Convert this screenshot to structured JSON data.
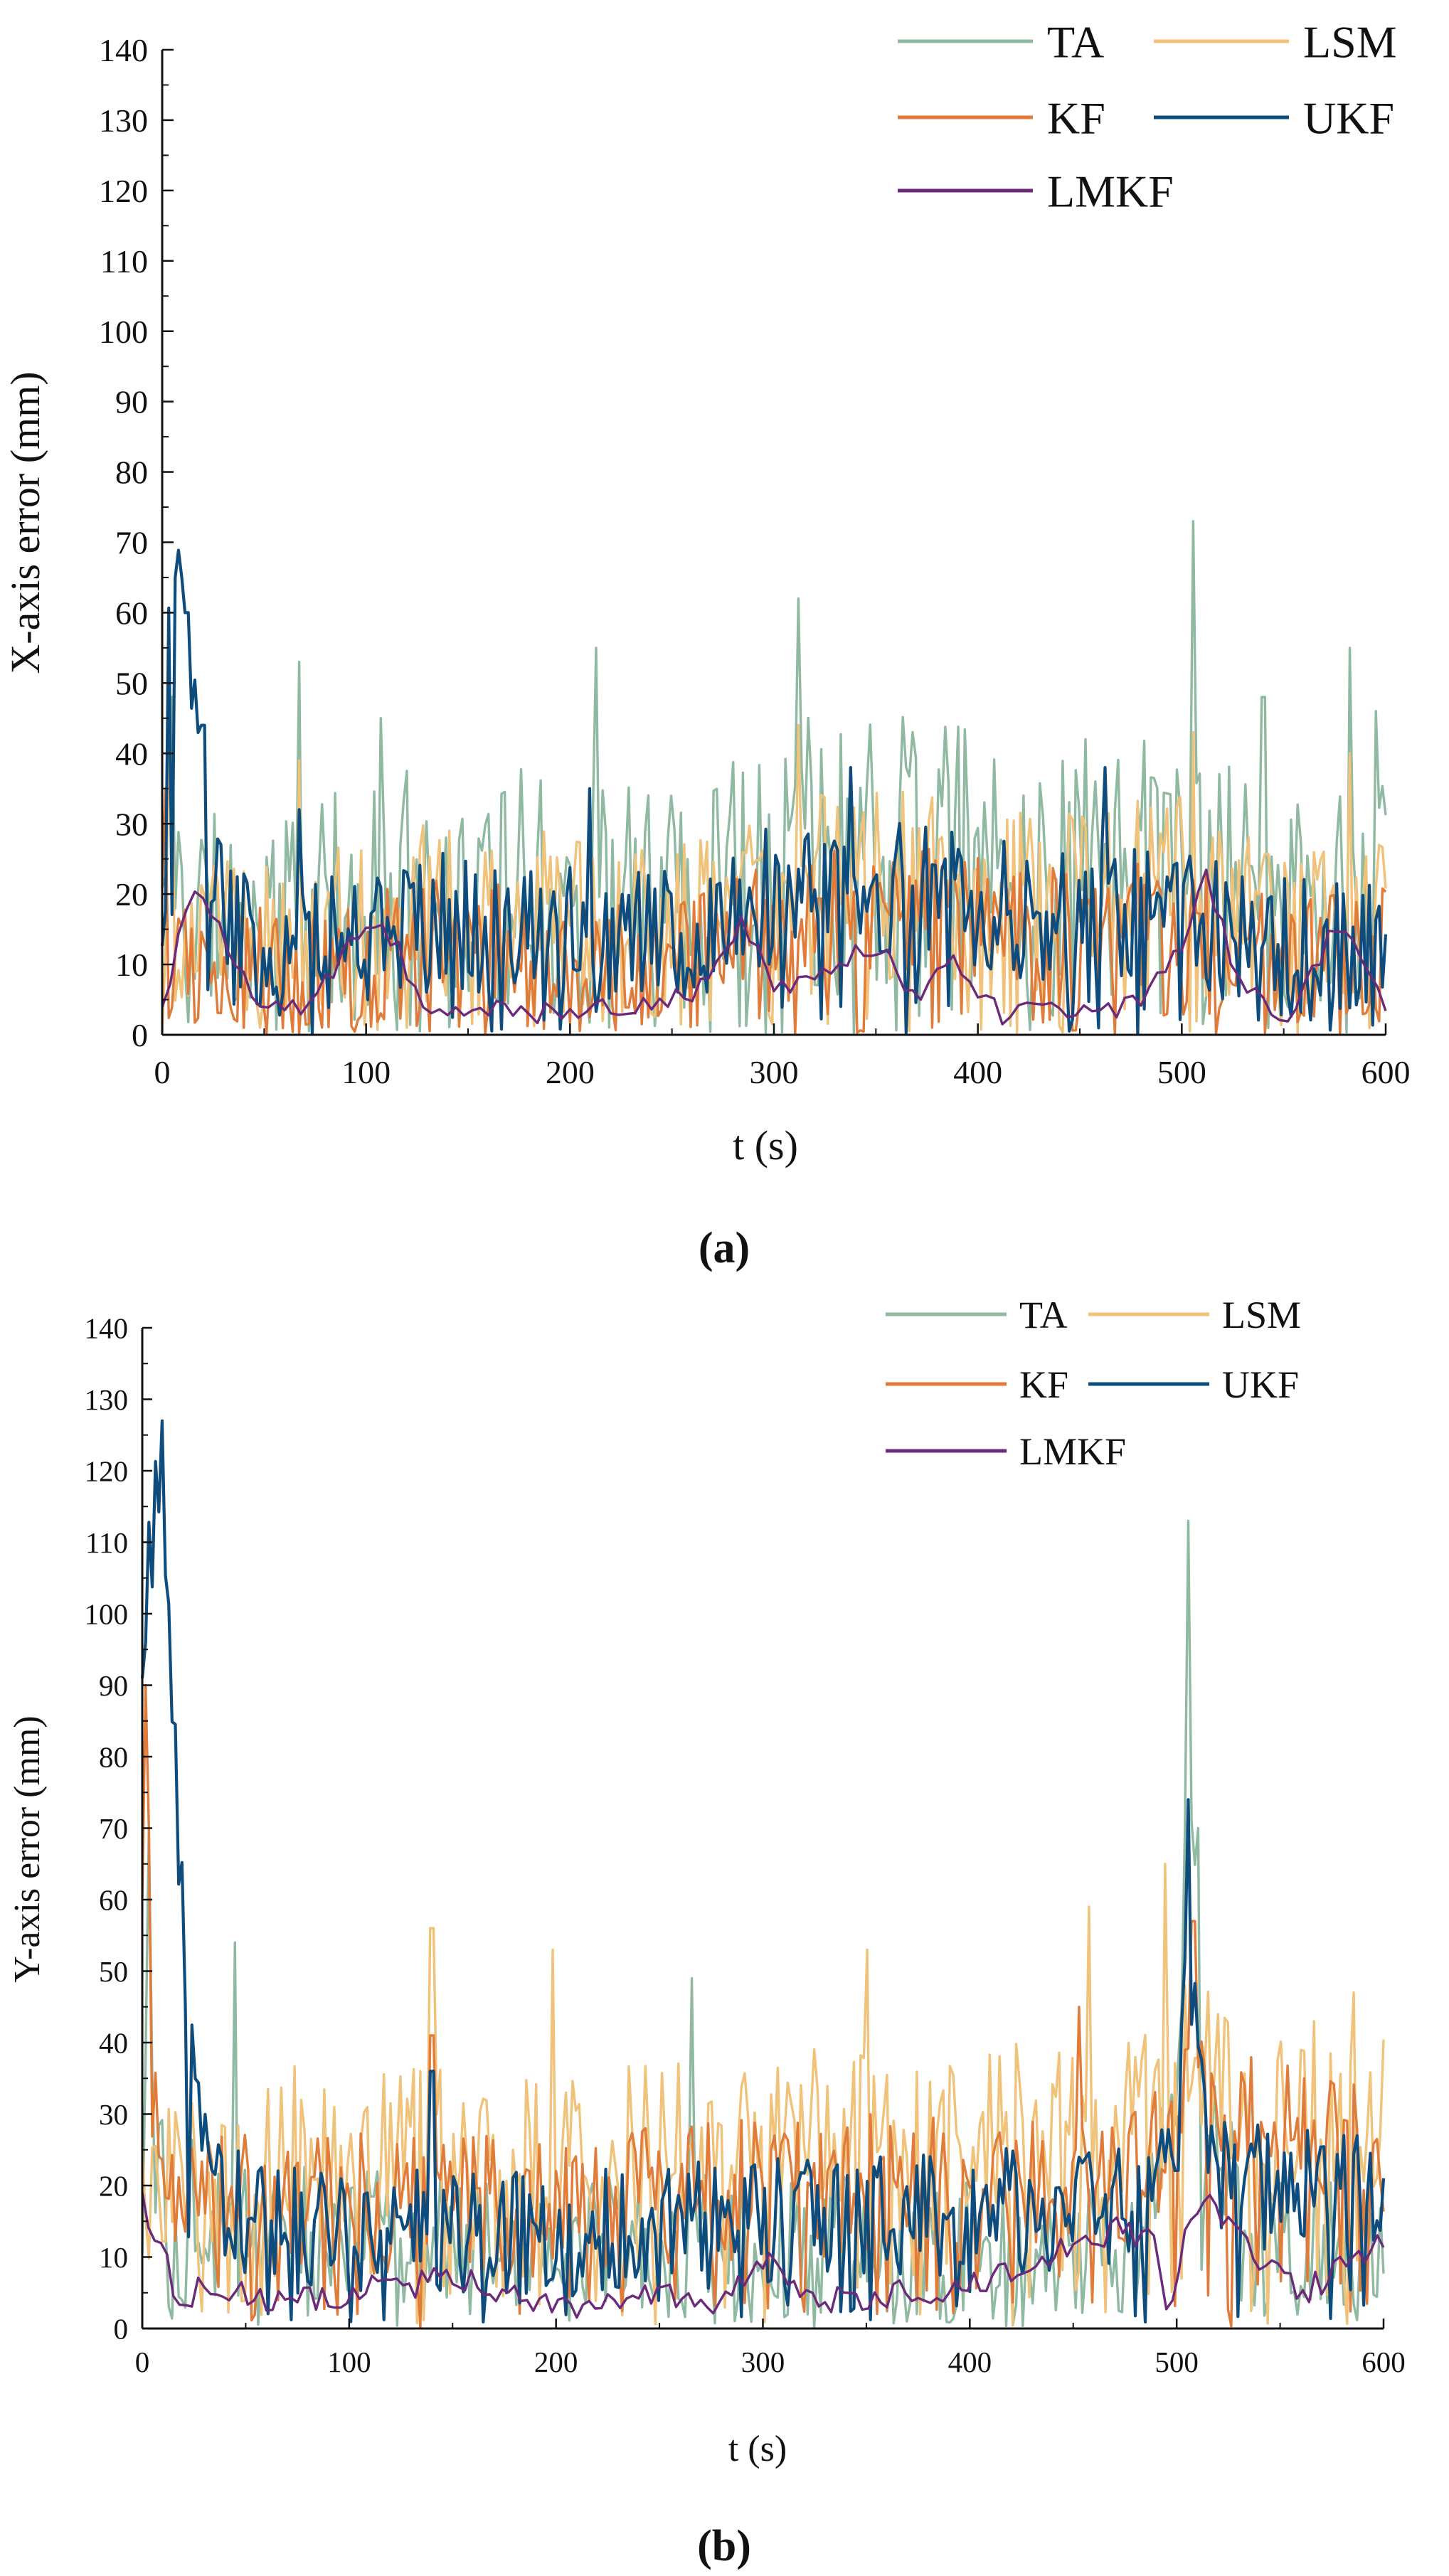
{
  "chart_data": [
    {
      "type": "line",
      "title": "",
      "panel_label": "(a)",
      "xlabel": "t (s)",
      "ylabel": "X-axis error (mm)",
      "xlim": [
        0,
        600
      ],
      "ylim": [
        0,
        140
      ],
      "xticks": [
        0,
        100,
        200,
        300,
        400,
        500,
        600
      ],
      "yticks": [
        0,
        10,
        20,
        30,
        40,
        50,
        60,
        70,
        80,
        90,
        100,
        110,
        120,
        130,
        140
      ],
      "legend_position": "top-right",
      "series": [
        {
          "name": "TA",
          "color": "#8fb9a1",
          "seed": 11,
          "base": [
            [
              0,
              20
            ],
            [
              20,
              18
            ],
            [
              60,
              18
            ],
            [
              120,
              24
            ],
            [
              200,
              24
            ],
            [
              260,
              20
            ],
            [
              300,
              32
            ],
            [
              380,
              32
            ],
            [
              430,
              28
            ],
            [
              500,
              30
            ],
            [
              540,
              20
            ],
            [
              600,
              22
            ]
          ],
          "noise": 14,
          "dip": 0.18,
          "peaks": [
            [
              4,
              48
            ],
            [
              67,
              53
            ],
            [
              107,
              45
            ],
            [
              213,
              55
            ],
            [
              312,
              62
            ],
            [
              505,
              73
            ],
            [
              540,
              48
            ],
            [
              583,
              55
            ],
            [
              595,
              46
            ]
          ]
        },
        {
          "name": "LSM",
          "color": "#f0c27a",
          "seed": 23,
          "base": [
            [
              0,
              16
            ],
            [
              20,
              15
            ],
            [
              60,
              14
            ],
            [
              120,
              19
            ],
            [
              200,
              19
            ],
            [
              260,
              16
            ],
            [
              300,
              24
            ],
            [
              380,
              24
            ],
            [
              430,
              21
            ],
            [
              500,
              23
            ],
            [
              540,
              16
            ],
            [
              600,
              18
            ]
          ],
          "noise": 11,
          "dip": 0.15,
          "peaks": [
            [
              4,
              40
            ],
            [
              67,
              39
            ],
            [
              312,
              44
            ],
            [
              505,
              43
            ],
            [
              583,
              40
            ]
          ]
        },
        {
          "name": "KF",
          "color": "#e07b39",
          "seed": 37,
          "base": [
            [
              0,
              12
            ],
            [
              20,
              10
            ],
            [
              60,
              9
            ],
            [
              120,
              13
            ],
            [
              200,
              13
            ],
            [
              260,
              11
            ],
            [
              300,
              17
            ],
            [
              380,
              18
            ],
            [
              430,
              15
            ],
            [
              500,
              16
            ],
            [
              540,
              11
            ],
            [
              600,
              12
            ]
          ],
          "noise": 9,
          "dip": 0.22,
          "peaks": [
            [
              2,
              35
            ],
            [
              505,
              22
            ]
          ]
        },
        {
          "name": "UKF",
          "color": "#0e4c7d",
          "seed": 53,
          "base": [
            [
              0,
              44
            ],
            [
              4,
              64
            ],
            [
              10,
              58
            ],
            [
              18,
              36
            ],
            [
              30,
              16
            ],
            [
              60,
              12
            ],
            [
              120,
              16
            ],
            [
              200,
              16
            ],
            [
              260,
              13
            ],
            [
              300,
              20
            ],
            [
              380,
              21
            ],
            [
              430,
              17
            ],
            [
              500,
              18
            ],
            [
              540,
              12
            ],
            [
              600,
              14
            ]
          ],
          "noise": 10,
          "dip": 0.08,
          "peaks": [
            [
              6,
              65
            ],
            [
              12,
              60
            ],
            [
              20,
              44
            ],
            [
              67,
              32
            ],
            [
              210,
              35
            ],
            [
              337,
              38
            ],
            [
              463,
              38
            ]
          ]
        },
        {
          "name": "LMKF",
          "color": "#6b2a7a",
          "seed": 71,
          "base": [
            [
              0,
              3
            ],
            [
              8,
              14
            ],
            [
              18,
              22
            ],
            [
              30,
              14
            ],
            [
              45,
              4
            ],
            [
              70,
              3
            ],
            [
              100,
              17
            ],
            [
              112,
              14
            ],
            [
              130,
              4
            ],
            [
              180,
              3
            ],
            [
              230,
              4
            ],
            [
              260,
              6
            ],
            [
              285,
              16
            ],
            [
              300,
              6
            ],
            [
              330,
              9
            ],
            [
              350,
              13
            ],
            [
              370,
              6
            ],
            [
              390,
              10
            ],
            [
              410,
              3
            ],
            [
              460,
              3
            ],
            [
              480,
              5
            ],
            [
              500,
              13
            ],
            [
              512,
              23
            ],
            [
              530,
              6
            ],
            [
              555,
              3
            ],
            [
              575,
              15
            ],
            [
              590,
              12
            ],
            [
              600,
              2
            ]
          ],
          "noise": 1.8,
          "dip": 0.0,
          "step": 4,
          "peaks": []
        }
      ]
    },
    {
      "type": "line",
      "title": "",
      "panel_label": "(b)",
      "xlabel": "t (s)",
      "ylabel": "Y-axis error (mm)",
      "xlim": [
        0,
        600
      ],
      "ylim": [
        0,
        140
      ],
      "xticks": [
        0,
        100,
        200,
        300,
        400,
        500,
        600
      ],
      "yticks": [
        0,
        10,
        20,
        30,
        40,
        50,
        60,
        70,
        80,
        90,
        100,
        110,
        120,
        130,
        140
      ],
      "legend_position": "top-right",
      "series": [
        {
          "name": "TA",
          "color": "#8fb9a1",
          "seed": 101,
          "base": [
            [
              0,
              40
            ],
            [
              6,
              24
            ],
            [
              15,
              20
            ],
            [
              60,
              14
            ],
            [
              200,
              12
            ],
            [
              300,
              13
            ],
            [
              400,
              12
            ],
            [
              480,
              11
            ],
            [
              500,
              30
            ],
            [
              506,
              80
            ],
            [
              512,
              30
            ],
            [
              540,
              12
            ],
            [
              600,
              12
            ]
          ],
          "noise": 9,
          "dip": 0.15,
          "peaks": [
            [
              3,
              70
            ],
            [
              45,
              54
            ],
            [
              265,
              49
            ],
            [
              506,
              113
            ],
            [
              510,
              70
            ]
          ]
        },
        {
          "name": "LSM",
          "color": "#f0c27a",
          "seed": 113,
          "base": [
            [
              0,
              20
            ],
            [
              10,
              18
            ],
            [
              60,
              24
            ],
            [
              200,
              24
            ],
            [
              300,
              26
            ],
            [
              400,
              27
            ],
            [
              480,
              28
            ],
            [
              500,
              32
            ],
            [
              510,
              40
            ],
            [
              540,
              30
            ],
            [
              600,
              30
            ]
          ],
          "noise": 13,
          "dip": 0.1,
          "peaks": [
            [
              140,
              56
            ],
            [
              198,
              53
            ],
            [
              350,
              53
            ],
            [
              457,
              59
            ],
            [
              495,
              65
            ],
            [
              585,
              47
            ]
          ]
        },
        {
          "name": "KF",
          "color": "#e07b39",
          "seed": 127,
          "base": [
            [
              0,
              50
            ],
            [
              4,
              30
            ],
            [
              12,
              18
            ],
            [
              60,
              18
            ],
            [
              200,
              17
            ],
            [
              300,
              20
            ],
            [
              400,
              20
            ],
            [
              480,
              22
            ],
            [
              500,
              28
            ],
            [
              510,
              45
            ],
            [
              520,
              30
            ],
            [
              600,
              24
            ]
          ],
          "noise": 10,
          "dip": 0.12,
          "peaks": [
            [
              1,
              90
            ],
            [
              3,
              70
            ],
            [
              140,
              41
            ],
            [
              453,
              45
            ],
            [
              508,
              57
            ]
          ]
        },
        {
          "name": "UKF",
          "color": "#0e4c7d",
          "seed": 139,
          "base": [
            [
              0,
              95
            ],
            [
              4,
              110
            ],
            [
              9,
              124
            ],
            [
              13,
              95
            ],
            [
              17,
              70
            ],
            [
              21,
              50
            ],
            [
              26,
              38
            ],
            [
              32,
              20
            ],
            [
              60,
              14
            ],
            [
              200,
              13
            ],
            [
              300,
              15
            ],
            [
              400,
              16
            ],
            [
              480,
              17
            ],
            [
              500,
              25
            ],
            [
              505,
              60
            ],
            [
              510,
              40
            ],
            [
              520,
              20
            ],
            [
              600,
              20
            ]
          ],
          "noise": 9,
          "dip": 0.08,
          "peaks": [
            [
              9,
              127
            ],
            [
              506,
              74
            ],
            [
              140,
              36
            ]
          ]
        },
        {
          "name": "LMKF",
          "color": "#6b2a7a",
          "seed": 151,
          "base": [
            [
              0,
              20
            ],
            [
              4,
              14
            ],
            [
              10,
              12
            ],
            [
              16,
              3
            ],
            [
              30,
              6
            ],
            [
              60,
              4
            ],
            [
              100,
              5
            ],
            [
              150,
              7
            ],
            [
              200,
              3
            ],
            [
              250,
              5
            ],
            [
              280,
              3
            ],
            [
              300,
              10
            ],
            [
              330,
              4
            ],
            [
              400,
              6
            ],
            [
              440,
              10
            ],
            [
              470,
              14
            ],
            [
              490,
              12
            ],
            [
              496,
              2
            ],
            [
              503,
              12
            ],
            [
              515,
              18
            ],
            [
              540,
              9
            ],
            [
              560,
              5
            ],
            [
              590,
              10
            ],
            [
              600,
              13
            ]
          ],
          "noise": 2.0,
          "dip": 0.0,
          "step": 3,
          "peaks": []
        }
      ]
    }
  ]
}
